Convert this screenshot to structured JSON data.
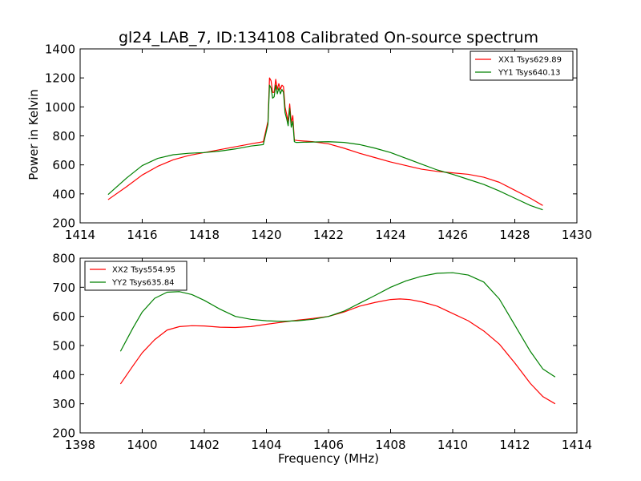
{
  "title": "gl24_LAB_7, ID:134108 Calibrated On-source spectrum",
  "colors": {
    "red": "#ff0000",
    "green": "#008000",
    "axis": "#000000",
    "background": "#ffffff"
  },
  "chart_data": [
    {
      "type": "line",
      "xlim": [
        1414,
        1430
      ],
      "ylim": [
        200,
        1400
      ],
      "xticks": [
        1414,
        1416,
        1418,
        1420,
        1422,
        1424,
        1426,
        1428,
        1430
      ],
      "yticks": [
        200,
        400,
        600,
        800,
        1000,
        1200,
        1400
      ],
      "xlabel": "",
      "ylabel": "Power in Kelvin",
      "grid": false,
      "legend_position": "top-right",
      "series": [
        {
          "name": "XX1 Tsys629.89",
          "color": "#ff0000",
          "x": [
            1414.9,
            1415.5,
            1416.0,
            1416.5,
            1417.0,
            1417.5,
            1418.0,
            1418.5,
            1419.0,
            1419.5,
            1419.9,
            1420.05,
            1420.1,
            1420.15,
            1420.2,
            1420.25,
            1420.3,
            1420.35,
            1420.4,
            1420.45,
            1420.5,
            1420.55,
            1420.6,
            1420.65,
            1420.7,
            1420.75,
            1420.8,
            1420.85,
            1420.9,
            1420.95,
            1421.0,
            1421.5,
            1422.0,
            1422.5,
            1423.0,
            1423.5,
            1424.0,
            1424.5,
            1425.0,
            1425.5,
            1426.0,
            1426.5,
            1427.0,
            1427.5,
            1428.0,
            1428.5,
            1428.9
          ],
          "y": [
            360,
            450,
            530,
            590,
            635,
            665,
            685,
            705,
            725,
            745,
            760,
            900,
            1200,
            1180,
            1100,
            1100,
            1190,
            1120,
            1160,
            1120,
            1150,
            1140,
            1000,
            950,
            900,
            1020,
            890,
            940,
            770,
            770,
            768,
            760,
            745,
            715,
            680,
            650,
            620,
            595,
            570,
            555,
            545,
            535,
            515,
            480,
            425,
            370,
            320
          ]
        },
        {
          "name": "YY1 Tsys640.13",
          "color": "#008000",
          "x": [
            1414.9,
            1415.5,
            1416.0,
            1416.5,
            1417.0,
            1417.5,
            1418.0,
            1418.5,
            1419.0,
            1419.5,
            1419.9,
            1420.05,
            1420.1,
            1420.15,
            1420.2,
            1420.25,
            1420.3,
            1420.35,
            1420.4,
            1420.45,
            1420.5,
            1420.55,
            1420.6,
            1420.65,
            1420.7,
            1420.75,
            1420.8,
            1420.85,
            1420.9,
            1420.95,
            1421.0,
            1421.5,
            1422.0,
            1422.5,
            1423.0,
            1423.5,
            1424.0,
            1424.5,
            1425.0,
            1425.5,
            1426.0,
            1426.5,
            1427.0,
            1427.5,
            1428.0,
            1428.5,
            1428.9
          ],
          "y": [
            395,
            510,
            595,
            645,
            670,
            680,
            685,
            695,
            710,
            730,
            740,
            880,
            1150,
            1130,
            1060,
            1070,
            1150,
            1090,
            1130,
            1090,
            1120,
            1100,
            960,
            920,
            870,
            990,
            860,
            900,
            760,
            755,
            755,
            758,
            760,
            755,
            740,
            715,
            685,
            645,
            605,
            565,
            535,
            500,
            465,
            420,
            370,
            320,
            290
          ]
        }
      ]
    },
    {
      "type": "line",
      "xlim": [
        1398,
        1414
      ],
      "ylim": [
        200,
        800
      ],
      "xticks": [
        1398,
        1400,
        1402,
        1404,
        1406,
        1408,
        1410,
        1412,
        1414
      ],
      "yticks": [
        200,
        300,
        400,
        500,
        600,
        700,
        800
      ],
      "xlabel": "Frequency (MHz)",
      "ylabel": "",
      "grid": false,
      "legend_position": "top-left",
      "series": [
        {
          "name": "XX2 Tsys554.95",
          "color": "#ff0000",
          "x": [
            1399.3,
            1399.7,
            1400.0,
            1400.4,
            1400.8,
            1401.2,
            1401.6,
            1402.0,
            1402.5,
            1403.0,
            1403.5,
            1404.0,
            1404.5,
            1405.0,
            1405.5,
            1406.0,
            1406.5,
            1407.0,
            1407.5,
            1408.0,
            1408.3,
            1408.6,
            1409.0,
            1409.5,
            1410.0,
            1410.5,
            1411.0,
            1411.5,
            1412.0,
            1412.5,
            1412.9,
            1413.3
          ],
          "y": [
            368,
            430,
            475,
            520,
            553,
            565,
            568,
            567,
            563,
            562,
            565,
            573,
            580,
            587,
            593,
            600,
            615,
            635,
            648,
            658,
            660,
            658,
            650,
            635,
            610,
            585,
            550,
            505,
            440,
            370,
            325,
            300
          ]
        },
        {
          "name": "YY2 Tsys635.84",
          "color": "#008000",
          "x": [
            1399.3,
            1399.7,
            1400.0,
            1400.4,
            1400.8,
            1401.2,
            1401.6,
            1402.0,
            1402.5,
            1403.0,
            1403.5,
            1404.0,
            1404.5,
            1405.0,
            1405.5,
            1406.0,
            1406.5,
            1407.0,
            1407.5,
            1408.0,
            1408.5,
            1409.0,
            1409.5,
            1410.0,
            1410.5,
            1411.0,
            1411.5,
            1412.0,
            1412.5,
            1412.9,
            1413.3
          ],
          "y": [
            480,
            560,
            615,
            662,
            683,
            685,
            675,
            655,
            625,
            600,
            590,
            585,
            583,
            585,
            590,
            600,
            618,
            645,
            672,
            700,
            722,
            738,
            748,
            750,
            742,
            718,
            660,
            570,
            480,
            420,
            392
          ]
        }
      ]
    }
  ]
}
